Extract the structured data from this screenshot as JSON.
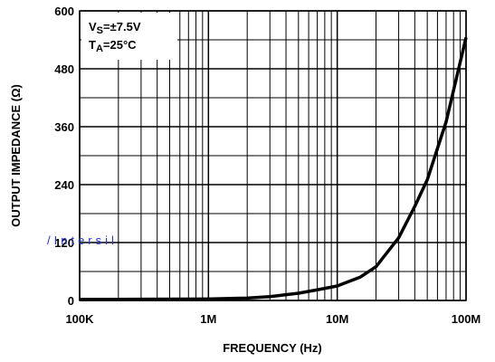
{
  "chart_data": {
    "type": "line",
    "xlabel": "FREQUENCY (Hz)",
    "ylabel": "OUTPUT IMPEDANCE (Ω)",
    "watermark": "/Intersil",
    "annotations": [
      [
        "V",
        "S",
        "=±7.5V"
      ],
      [
        "T",
        "A",
        "=25°C"
      ]
    ],
    "xscale": "log",
    "xlim": [
      100000,
      100000000
    ],
    "ylim": [
      0,
      600
    ],
    "xticks": [
      {
        "value": 100000,
        "label": "100K"
      },
      {
        "value": 1000000,
        "label": "1M"
      },
      {
        "value": 10000000,
        "label": "10M"
      },
      {
        "value": 100000000,
        "label": "100M"
      }
    ],
    "xminor": [
      200000,
      300000,
      400000,
      500000,
      600000,
      700000,
      800000,
      900000,
      2000000,
      3000000,
      4000000,
      5000000,
      6000000,
      7000000,
      8000000,
      9000000,
      20000000,
      30000000,
      40000000,
      50000000,
      60000000,
      70000000,
      80000000,
      90000000
    ],
    "yticks": [
      0,
      120,
      240,
      360,
      480,
      600
    ],
    "yminor": [
      60,
      180,
      300,
      420,
      540
    ],
    "grid": true,
    "series": [
      {
        "color": "#000000",
        "x": [
          100000,
          300000,
          1000000,
          2000000,
          3000000,
          5000000,
          7000000,
          10000000,
          15000000,
          20000000,
          30000000,
          40000000,
          50000000,
          70000000,
          100000000
        ],
        "values": [
          2,
          2.5,
          3,
          5,
          8,
          15,
          22,
          30,
          48,
          70,
          130,
          195,
          250,
          370,
          545
        ]
      }
    ]
  }
}
